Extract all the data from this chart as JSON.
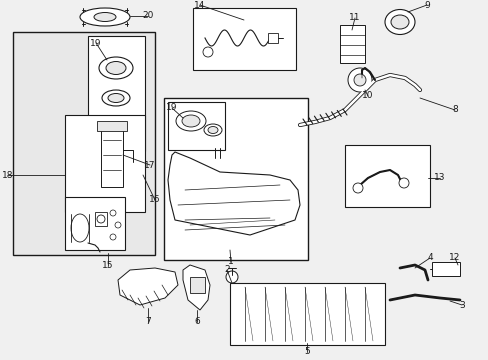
{
  "bg_color": "#f0f0f0",
  "line_color": "#1a1a1a",
  "box_fill_white": "#ffffff",
  "box_fill_light": "#e8e8e8",
  "figsize": [
    4.89,
    3.6
  ],
  "dpi": 100
}
